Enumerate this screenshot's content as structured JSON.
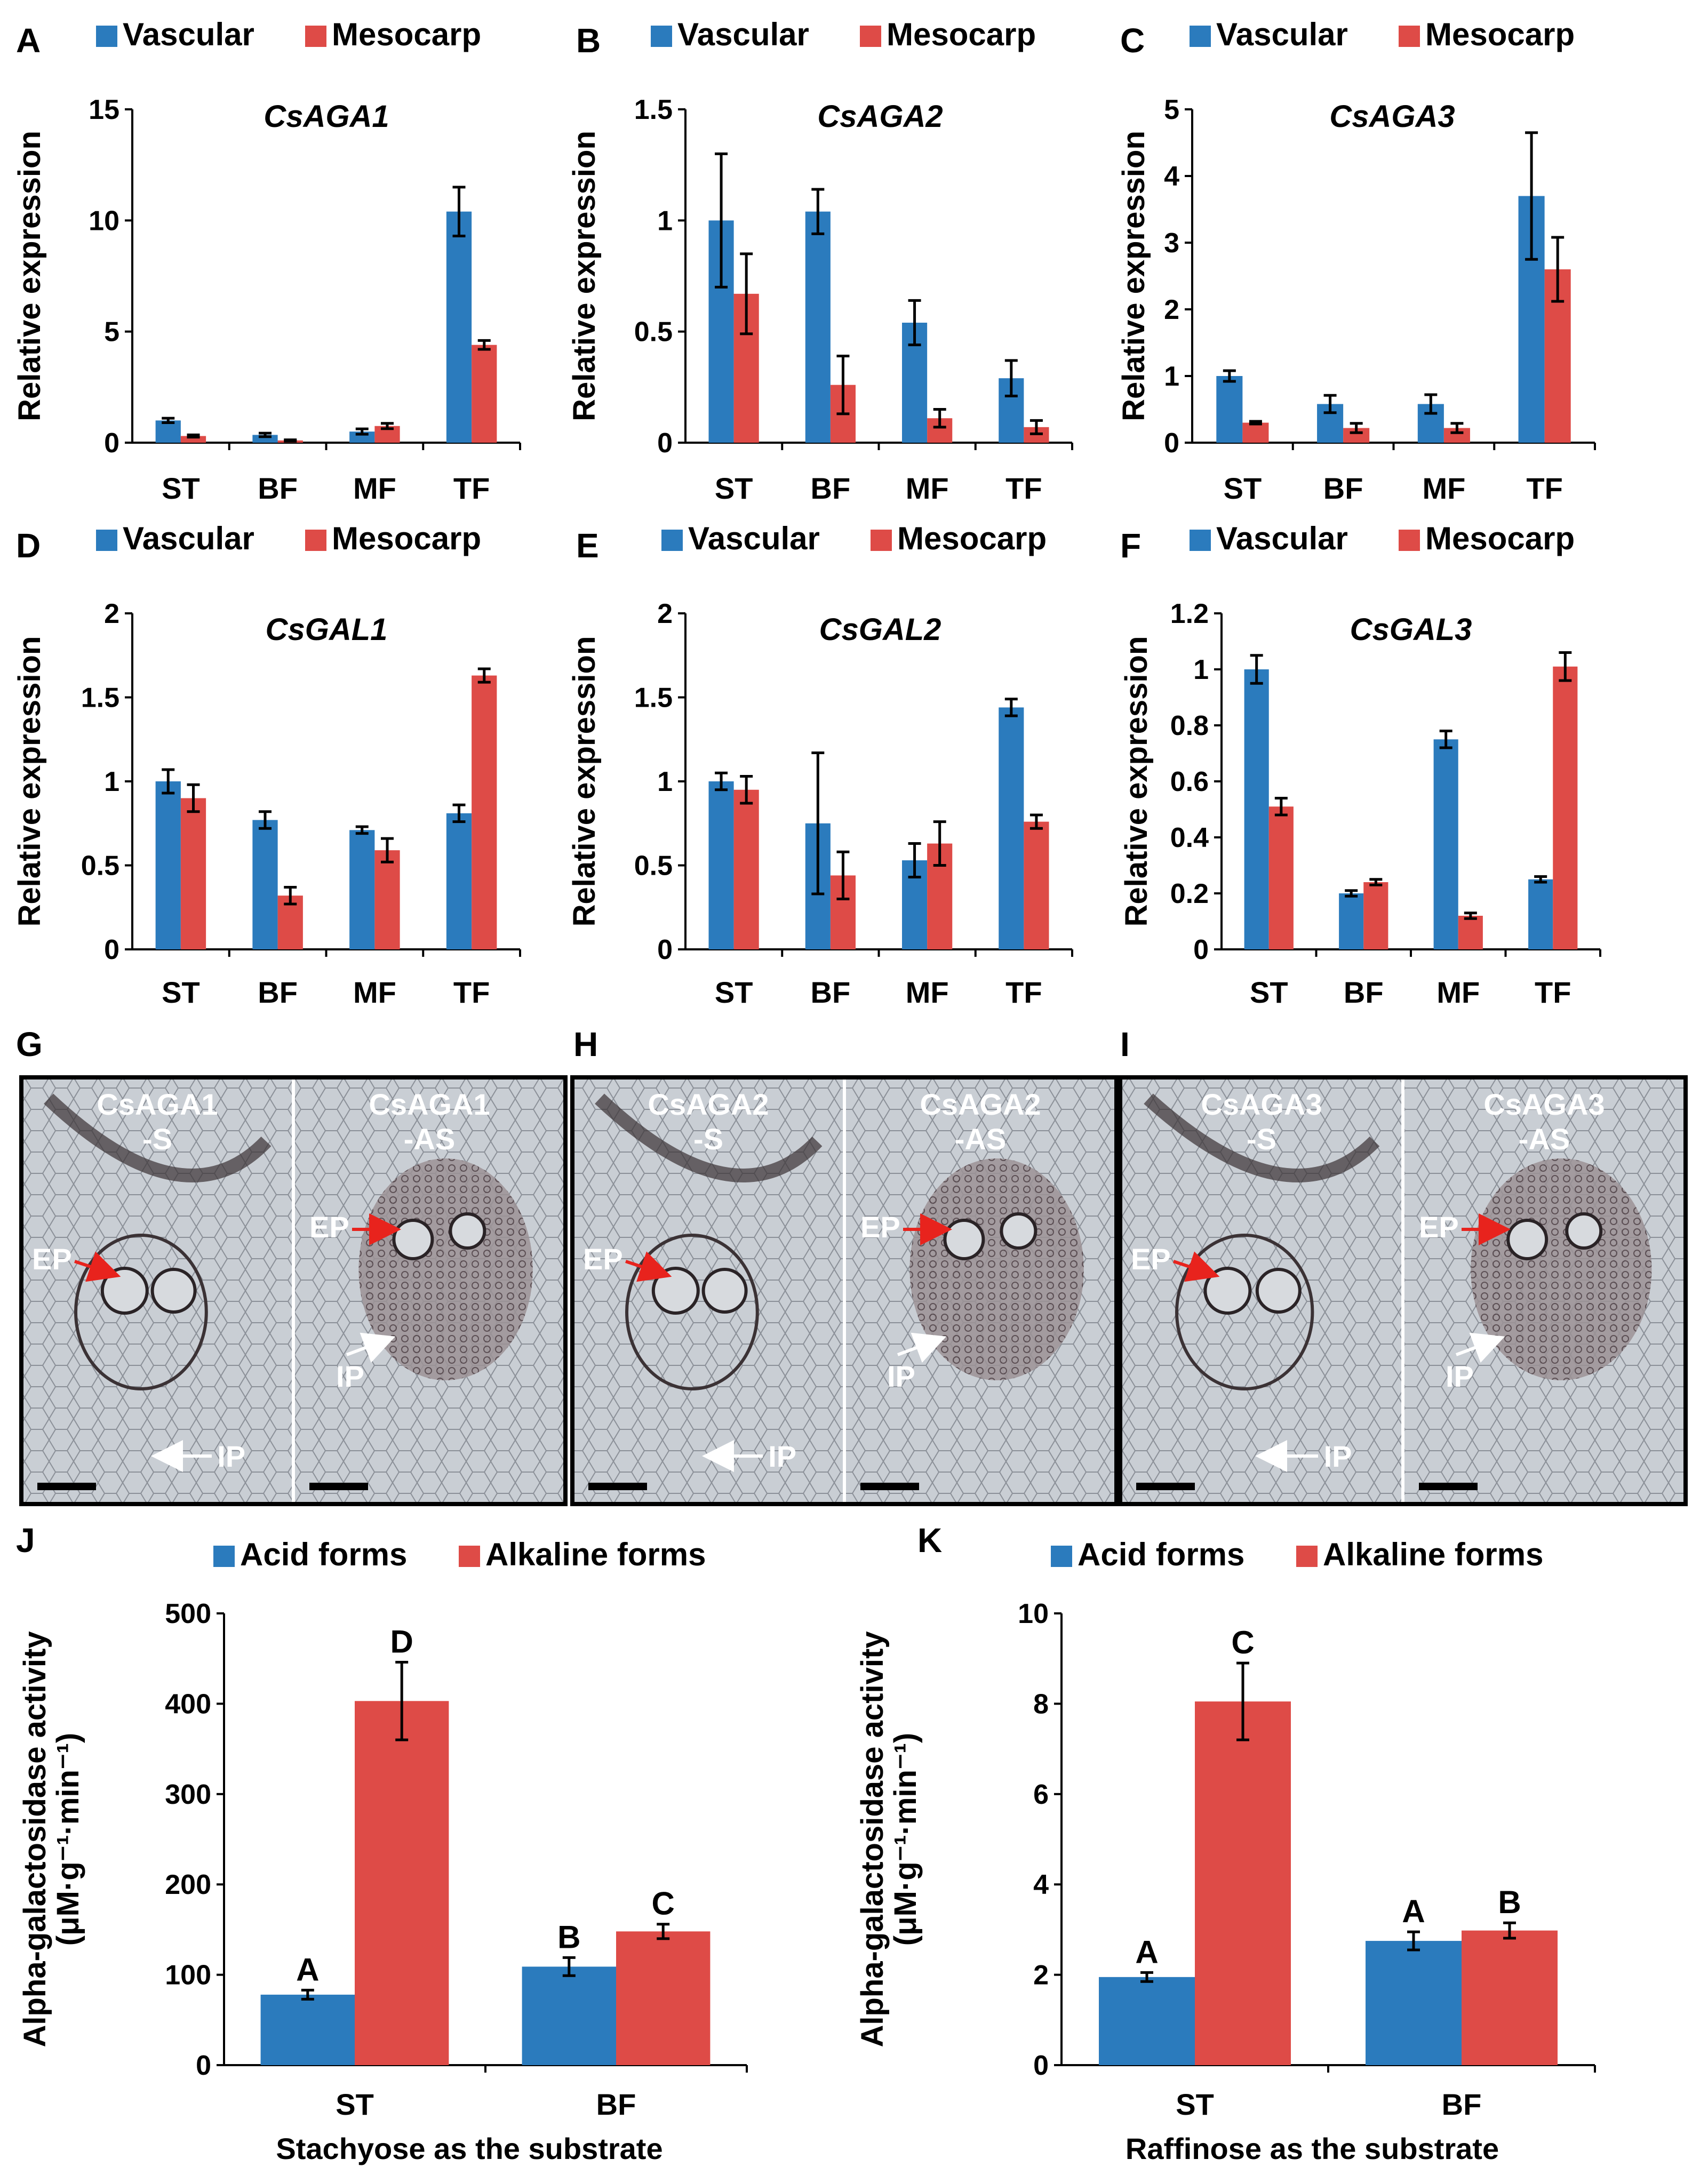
{
  "colors": {
    "vascular": "#2b7bbd",
    "mesocarp": "#de4b47",
    "acid": "#2b7bbd",
    "alkaline": "#de4b47"
  },
  "legend_expr": {
    "vascular": "Vascular",
    "mesocarp": "Mesocarp"
  },
  "legend_enzyme": {
    "acid": "Acid forms",
    "alkaline": "Alkaline forms"
  },
  "ylabel_expr": "Relative expression",
  "ylabel_activity_line1": "Alpha-galactosidase activity",
  "ylabel_activity_line2": "(μM·g⁻¹·min⁻¹)",
  "chart_data": [
    {
      "panel": "A",
      "title": "CsAGA1",
      "type": "bar",
      "categories": [
        "ST",
        "BF",
        "MF",
        "TF"
      ],
      "ylim": [
        0,
        15
      ],
      "yticks": [
        "0",
        "5",
        "10",
        "15"
      ],
      "ytick_values": [
        0,
        5,
        10,
        15
      ],
      "series": [
        {
          "name": "Vascular",
          "values": [
            1.0,
            0.35,
            0.5,
            10.4
          ],
          "errors": [
            0.1,
            0.08,
            0.12,
            1.1
          ]
        },
        {
          "name": "Mesocarp",
          "values": [
            0.3,
            0.1,
            0.75,
            4.4
          ],
          "errors": [
            0.05,
            0.03,
            0.12,
            0.2
          ]
        }
      ]
    },
    {
      "panel": "B",
      "title": "CsAGA2",
      "type": "bar",
      "categories": [
        "ST",
        "BF",
        "MF",
        "TF"
      ],
      "ylim": [
        0,
        1.5
      ],
      "yticks": [
        "0",
        "0.5",
        "1",
        "1.5"
      ],
      "ytick_values": [
        0,
        0.5,
        1,
        1.5
      ],
      "series": [
        {
          "name": "Vascular",
          "values": [
            1.0,
            1.04,
            0.54,
            0.29
          ],
          "errors": [
            0.3,
            0.1,
            0.1,
            0.08
          ]
        },
        {
          "name": "Mesocarp",
          "values": [
            0.67,
            0.26,
            0.11,
            0.07
          ],
          "errors": [
            0.18,
            0.13,
            0.04,
            0.03
          ]
        }
      ]
    },
    {
      "panel": "C",
      "title": "CsAGA3",
      "type": "bar",
      "categories": [
        "ST",
        "BF",
        "MF",
        "TF"
      ],
      "ylim": [
        0,
        5
      ],
      "yticks": [
        "0",
        "1",
        "2",
        "3",
        "4",
        "5"
      ],
      "ytick_values": [
        0,
        1,
        2,
        3,
        4,
        5
      ],
      "series": [
        {
          "name": "Vascular",
          "values": [
            1.0,
            0.58,
            0.58,
            3.7
          ],
          "errors": [
            0.08,
            0.13,
            0.14,
            0.95
          ]
        },
        {
          "name": "Mesocarp",
          "values": [
            0.3,
            0.22,
            0.22,
            2.6
          ],
          "errors": [
            0.02,
            0.07,
            0.07,
            0.48
          ]
        }
      ]
    },
    {
      "panel": "D",
      "title": "CsGAL1",
      "type": "bar",
      "categories": [
        "ST",
        "BF",
        "MF",
        "TF"
      ],
      "ylim": [
        0,
        2
      ],
      "yticks": [
        "0",
        "0.5",
        "1",
        "1.5",
        "2"
      ],
      "ytick_values": [
        0,
        0.5,
        1,
        1.5,
        2
      ],
      "series": [
        {
          "name": "Vascular",
          "values": [
            1.0,
            0.77,
            0.71,
            0.81
          ],
          "errors": [
            0.07,
            0.05,
            0.02,
            0.05
          ]
        },
        {
          "name": "Mesocarp",
          "values": [
            0.9,
            0.32,
            0.59,
            1.63
          ],
          "errors": [
            0.08,
            0.05,
            0.07,
            0.04
          ]
        }
      ]
    },
    {
      "panel": "E",
      "title": "CsGAL2",
      "type": "bar",
      "categories": [
        "ST",
        "BF",
        "MF",
        "TF"
      ],
      "ylim": [
        0,
        2
      ],
      "yticks": [
        "0",
        "0.5",
        "1",
        "1.5",
        "2"
      ],
      "ytick_values": [
        0,
        0.5,
        1,
        1.5,
        2
      ],
      "series": [
        {
          "name": "Vascular",
          "values": [
            1.0,
            0.75,
            0.53,
            1.44
          ],
          "errors": [
            0.05,
            0.42,
            0.1,
            0.05
          ]
        },
        {
          "name": "Mesocarp",
          "values": [
            0.95,
            0.44,
            0.63,
            0.76
          ],
          "errors": [
            0.08,
            0.14,
            0.13,
            0.04
          ]
        }
      ]
    },
    {
      "panel": "F",
      "title": "CsGAL3",
      "type": "bar",
      "categories": [
        "ST",
        "BF",
        "MF",
        "TF"
      ],
      "ylim": [
        0,
        1.2
      ],
      "yticks": [
        "0",
        "0.2",
        "0.4",
        "0.6",
        "0.8",
        "1",
        "1.2"
      ],
      "ytick_values": [
        0,
        0.2,
        0.4,
        0.6,
        0.8,
        1,
        1.2
      ],
      "series": [
        {
          "name": "Vascular",
          "values": [
            1.0,
            0.2,
            0.75,
            0.25
          ],
          "errors": [
            0.05,
            0.01,
            0.03,
            0.01
          ]
        },
        {
          "name": "Mesocarp",
          "values": [
            0.51,
            0.24,
            0.12,
            1.01
          ],
          "errors": [
            0.03,
            0.01,
            0.01,
            0.05
          ]
        }
      ]
    },
    {
      "panel": "J",
      "title": "",
      "type": "bar",
      "categories": [
        "ST",
        "BF"
      ],
      "xlabel": "Stachyose as the substrate",
      "ylim": [
        0,
        500
      ],
      "yticks": [
        "0",
        "100",
        "200",
        "300",
        "400",
        "500"
      ],
      "ytick_values": [
        0,
        100,
        200,
        300,
        400,
        500
      ],
      "series": [
        {
          "name": "Acid forms",
          "values": [
            78,
            109
          ],
          "errors": [
            5,
            10
          ],
          "letters": [
            "A",
            "B"
          ]
        },
        {
          "name": "Alkaline forms",
          "values": [
            403,
            148
          ],
          "errors": [
            43,
            8
          ],
          "letters": [
            "D",
            "C"
          ]
        }
      ]
    },
    {
      "panel": "K",
      "title": "",
      "type": "bar",
      "categories": [
        "ST",
        "BF"
      ],
      "xlabel": "Raffinose as the substrate",
      "ylim": [
        0,
        10
      ],
      "yticks": [
        "0",
        "2",
        "4",
        "6",
        "8",
        "10"
      ],
      "ytick_values": [
        0,
        2,
        4,
        6,
        8,
        10
      ],
      "series": [
        {
          "name": "Acid forms",
          "values": [
            1.95,
            2.75
          ],
          "errors": [
            0.1,
            0.2
          ],
          "letters": [
            "A",
            "A"
          ]
        },
        {
          "name": "Alkaline forms",
          "values": [
            8.05,
            2.98
          ],
          "errors": [
            0.85,
            0.17
          ],
          "letters": [
            "C",
            "B"
          ]
        }
      ]
    }
  ],
  "micrographs": [
    {
      "panel": "G",
      "left_label": [
        "CsAGA1",
        "-S"
      ],
      "right_label": [
        "CsAGA1",
        "-AS"
      ]
    },
    {
      "panel": "H",
      "left_label": [
        "CsAGA2",
        "-S"
      ],
      "right_label": [
        "CsAGA2",
        "-AS"
      ]
    },
    {
      "panel": "I",
      "left_label": [
        "CsAGA3",
        "-S"
      ],
      "right_label": [
        "CsAGA3",
        "-AS"
      ]
    }
  ],
  "arrow_labels": {
    "ep": "EP",
    "ip": "IP"
  }
}
